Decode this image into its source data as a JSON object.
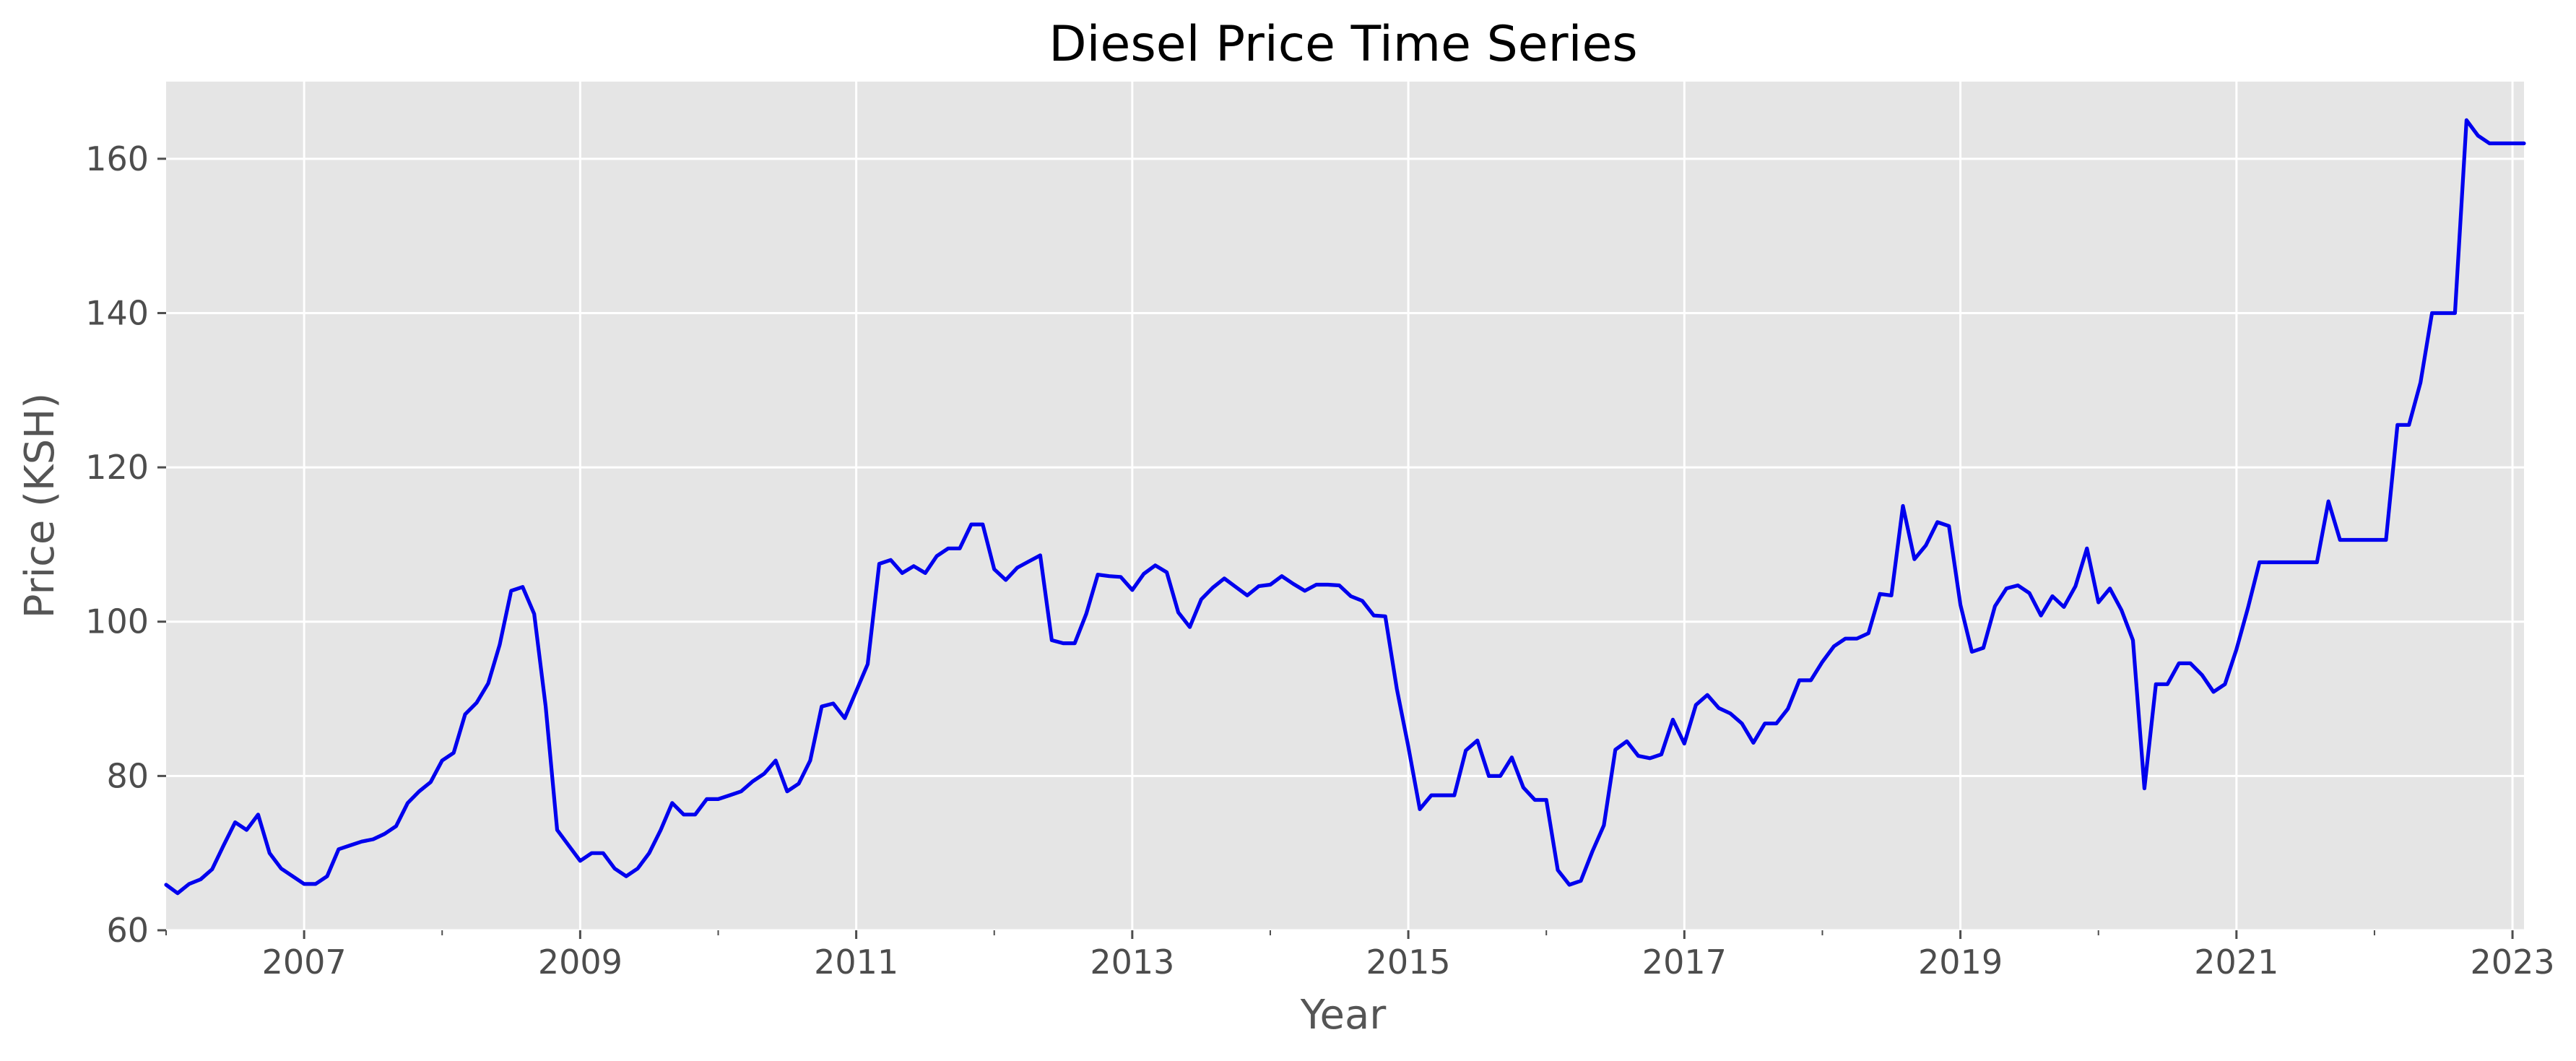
{
  "chart_data": {
    "type": "line",
    "title": "Diesel Price Time Series",
    "xlabel": "Year",
    "ylabel": "Price (KSH)",
    "xlim": [
      "2006-01",
      "2023-02"
    ],
    "ylim": [
      60,
      170
    ],
    "grid": true,
    "legend": "none",
    "x_ticks": [
      "2007",
      "2009",
      "2011",
      "2013",
      "2015",
      "2017",
      "2019",
      "2021",
      "2023"
    ],
    "y_ticks": [
      "60",
      "80",
      "100",
      "120",
      "140",
      "160"
    ],
    "colors": {
      "line": "#0000ee",
      "plot_background": "#e5e5e5",
      "grid": "#ffffff"
    },
    "series": [
      {
        "x": [
          "2006-01",
          "2006-02",
          "2006-03",
          "2006-04",
          "2006-05",
          "2006-06",
          "2006-07",
          "2006-08",
          "2006-09",
          "2006-10",
          "2006-11",
          "2006-12",
          "2007-01",
          "2007-02",
          "2007-03",
          "2007-04",
          "2007-05",
          "2007-06",
          "2007-07",
          "2007-08",
          "2007-09",
          "2007-10",
          "2007-11",
          "2007-12",
          "2008-01",
          "2008-02",
          "2008-03",
          "2008-04",
          "2008-05",
          "2008-06",
          "2008-07",
          "2008-08",
          "2008-09",
          "2008-10",
          "2008-11",
          "2008-12",
          "2009-01",
          "2009-02",
          "2009-03",
          "2009-04",
          "2009-05",
          "2009-06",
          "2009-07",
          "2009-08",
          "2009-09",
          "2009-10",
          "2009-11",
          "2009-12",
          "2010-01",
          "2010-02",
          "2010-03",
          "2010-04",
          "2010-05",
          "2010-06",
          "2010-07",
          "2010-08",
          "2010-09",
          "2010-10",
          "2010-11",
          "2010-12",
          "2011-01",
          "2011-02",
          "2011-03",
          "2011-04",
          "2011-05",
          "2011-06",
          "2011-07",
          "2011-08",
          "2011-09",
          "2011-10",
          "2011-11",
          "2011-12",
          "2012-01",
          "2012-02",
          "2012-03",
          "2012-04",
          "2012-05",
          "2012-06",
          "2012-07",
          "2012-08",
          "2012-09",
          "2012-10",
          "2012-11",
          "2012-12",
          "2013-01",
          "2013-02",
          "2013-03",
          "2013-04",
          "2013-05",
          "2013-06",
          "2013-07",
          "2013-08",
          "2013-09",
          "2013-10",
          "2013-11",
          "2013-12",
          "2014-01",
          "2014-02",
          "2014-03",
          "2014-04",
          "2014-05",
          "2014-06",
          "2014-07",
          "2014-08",
          "2014-09",
          "2014-10",
          "2014-11",
          "2014-12",
          "2015-01",
          "2015-02",
          "2015-03",
          "2015-04",
          "2015-05",
          "2015-06",
          "2015-07",
          "2015-08",
          "2015-09",
          "2015-10",
          "2015-11",
          "2015-12",
          "2016-01",
          "2016-02",
          "2016-03",
          "2016-04",
          "2016-05",
          "2016-06",
          "2016-07",
          "2016-08",
          "2016-09",
          "2016-10",
          "2016-11",
          "2016-12",
          "2017-01",
          "2017-02",
          "2017-03",
          "2017-04",
          "2017-05",
          "2017-06",
          "2017-07",
          "2017-08",
          "2017-09",
          "2017-10",
          "2017-11",
          "2017-12",
          "2018-01",
          "2018-02",
          "2018-03",
          "2018-04",
          "2018-05",
          "2018-06",
          "2018-07",
          "2018-08",
          "2018-09",
          "2018-10",
          "2018-11",
          "2018-12",
          "2019-01",
          "2019-02",
          "2019-03",
          "2019-04",
          "2019-05",
          "2019-06",
          "2019-07",
          "2019-08",
          "2019-09",
          "2019-10",
          "2019-11",
          "2019-12",
          "2020-01",
          "2020-02",
          "2020-03",
          "2020-04",
          "2020-05",
          "2020-06",
          "2020-07",
          "2020-08",
          "2020-09",
          "2020-10",
          "2020-11",
          "2020-12",
          "2021-01",
          "2021-02",
          "2021-03",
          "2021-04",
          "2021-05",
          "2021-06",
          "2021-07",
          "2021-08",
          "2021-09",
          "2021-10",
          "2021-11",
          "2021-12",
          "2022-01",
          "2022-02",
          "2022-03",
          "2022-04",
          "2022-05",
          "2022-06",
          "2022-07",
          "2022-08",
          "2022-09",
          "2022-10",
          "2022-11",
          "2022-12",
          "2023-01",
          "2023-02"
        ],
        "y": [
          65.9,
          64.8,
          66.0,
          66.6,
          67.9,
          71.0,
          74.0,
          73.0,
          75.0,
          70.0,
          68.0,
          67.0,
          66.0,
          66.0,
          67.0,
          70.5,
          71.0,
          71.5,
          71.8,
          72.5,
          73.5,
          76.5,
          78.0,
          79.2,
          82.0,
          83.0,
          88.0,
          89.5,
          92.0,
          97.0,
          104.0,
          104.5,
          101.0,
          89.0,
          73.0,
          71.0,
          69.0,
          70.0,
          70.0,
          68.0,
          67.0,
          68.0,
          70.0,
          73.0,
          76.5,
          75.0,
          75.0,
          77.0,
          77.0,
          77.5,
          78.0,
          79.3,
          80.3,
          82.0,
          78.0,
          79.0,
          82.0,
          89.0,
          89.4,
          87.5,
          91.0,
          94.5,
          107.5,
          108.0,
          106.3,
          107.2,
          106.3,
          108.5,
          109.5,
          109.5,
          112.6,
          112.6,
          106.8,
          105.4,
          107.0,
          107.8,
          108.6,
          97.6,
          97.2,
          97.2,
          101.0,
          106.1,
          105.9,
          105.8,
          104.1,
          106.2,
          107.3,
          106.4,
          101.2,
          99.3,
          102.9,
          104.4,
          105.6,
          104.5,
          103.4,
          104.6,
          104.8,
          105.9,
          104.9,
          104.0,
          104.8,
          104.8,
          104.7,
          103.3,
          102.7,
          100.8,
          100.7,
          91.3,
          83.8,
          75.7,
          77.5,
          77.5,
          77.5,
          83.3,
          84.6,
          80.0,
          80.0,
          82.4,
          78.5,
          76.9,
          76.9,
          67.8,
          65.9,
          66.4,
          70.2,
          73.6,
          83.4,
          84.5,
          82.6,
          82.3,
          82.8,
          87.3,
          84.2,
          89.2,
          90.5,
          88.8,
          88.1,
          86.8,
          84.3,
          86.8,
          86.8,
          88.7,
          92.4,
          92.4,
          94.8,
          96.8,
          97.8,
          97.8,
          98.5,
          103.6,
          103.4,
          115.0,
          108.1,
          109.9,
          112.9,
          112.4,
          102.2,
          96.1,
          96.6,
          102.0,
          104.3,
          104.7,
          103.7,
          100.8,
          103.3,
          101.9,
          104.6,
          109.5,
          102.5,
          104.3,
          101.5,
          97.6,
          78.4,
          91.9,
          91.9,
          94.6,
          94.6,
          93.1,
          90.9,
          91.9,
          96.4,
          101.8,
          107.7,
          107.7,
          107.7,
          107.7,
          107.7,
          107.7,
          115.6,
          110.6,
          110.6,
          110.6,
          110.6,
          110.6,
          125.5,
          125.5,
          131.0,
          140.0,
          140.0,
          140.0,
          165.0,
          163.0,
          162.0,
          162.0,
          162.0,
          162.0
        ]
      }
    ]
  }
}
